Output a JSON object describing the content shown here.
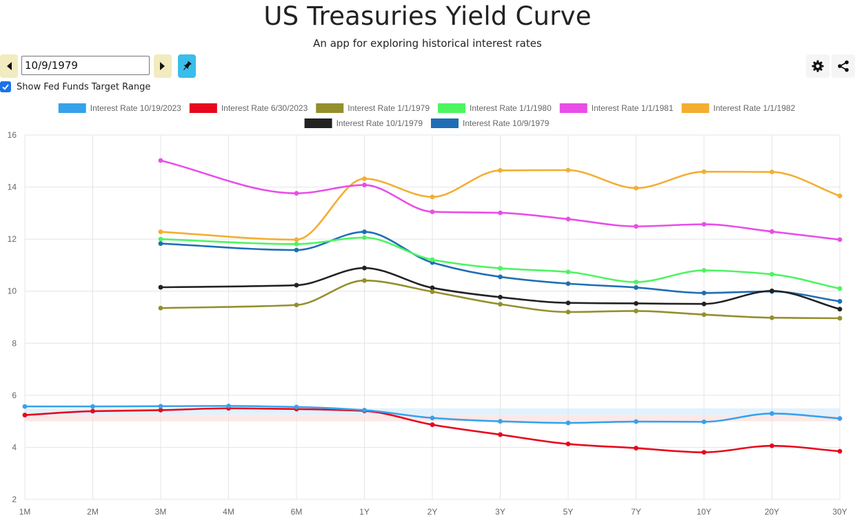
{
  "header": {
    "title": "US Treasuries Yield Curve",
    "subtitle": "An app for exploring historical interest rates"
  },
  "controls": {
    "date_value": "10/9/1979",
    "show_fed_funds_label": "Show Fed Funds Target Range",
    "show_fed_funds_checked": true,
    "icons": {
      "prev": "caret-left-icon",
      "next": "caret-right-icon",
      "pin": "pin-icon",
      "settings": "gear-icon",
      "share": "share-icon"
    },
    "colors": {
      "nav_button": "#f2ebbf",
      "pin_button": "#3bbde9",
      "checkbox": "#1a73e8"
    }
  },
  "chart_data": {
    "type": "line",
    "x": [
      "1M",
      "2M",
      "3M",
      "4M",
      "6M",
      "1Y",
      "2Y",
      "3Y",
      "5Y",
      "7Y",
      "10Y",
      "20Y",
      "30Y"
    ],
    "ylim": [
      2,
      16
    ],
    "yticks": [
      2,
      4,
      6,
      8,
      10,
      12,
      14,
      16
    ],
    "grid": true,
    "legend_position": "top",
    "fed_funds_band": {
      "low": 5.25,
      "high": 5.5,
      "fill": "#ddeefb"
    },
    "fed_funds_band_prev": {
      "low": 5.0,
      "high": 5.25,
      "fill": "#fde4e4"
    },
    "series": [
      {
        "name": "Interest Rate 10/19/2023",
        "color": "#36a2eb",
        "values": [
          5.57,
          5.57,
          5.58,
          5.59,
          5.55,
          5.43,
          5.13,
          5.0,
          4.94,
          4.99,
          4.98,
          5.3,
          5.11
        ]
      },
      {
        "name": "Interest Rate 6/30/2023",
        "color": "#e8071d",
        "values": [
          5.24,
          5.39,
          5.43,
          5.5,
          5.47,
          5.4,
          4.87,
          4.49,
          4.13,
          3.97,
          3.81,
          4.06,
          3.85
        ]
      },
      {
        "name": "Interest Rate 1/1/1979",
        "color": "#948f2d",
        "values": [
          null,
          null,
          9.35,
          null,
          9.47,
          10.41,
          9.98,
          9.5,
          9.2,
          9.24,
          9.1,
          8.98,
          8.96
        ]
      },
      {
        "name": "Interest Rate 1/1/1980",
        "color": "#4cf560",
        "values": [
          null,
          null,
          12.0,
          null,
          11.81,
          12.06,
          11.21,
          10.88,
          10.74,
          10.35,
          10.8,
          10.65,
          10.1
        ]
      },
      {
        "name": "Interest Rate 1/1/1981",
        "color": "#e94de8",
        "values": [
          null,
          null,
          15.02,
          null,
          13.76,
          14.08,
          13.05,
          13.01,
          12.77,
          12.49,
          12.57,
          12.29,
          11.98
        ]
      },
      {
        "name": "Interest Rate 1/1/1982",
        "color": "#f3ae31",
        "values": [
          null,
          null,
          12.28,
          null,
          11.98,
          14.32,
          13.62,
          14.64,
          14.65,
          13.96,
          14.59,
          14.58,
          13.66
        ]
      },
      {
        "name": "Interest Rate 10/1/1979",
        "color": "#222222",
        "values": [
          null,
          null,
          10.15,
          null,
          10.23,
          10.89,
          10.13,
          9.77,
          9.55,
          9.53,
          9.51,
          10.01,
          9.31
        ]
      },
      {
        "name": "Interest Rate 10/9/1979",
        "color": "#1f6eb5",
        "values": [
          null,
          null,
          11.83,
          null,
          11.58,
          12.28,
          11.1,
          10.55,
          10.29,
          10.14,
          9.93,
          9.99,
          9.61
        ]
      }
    ]
  }
}
